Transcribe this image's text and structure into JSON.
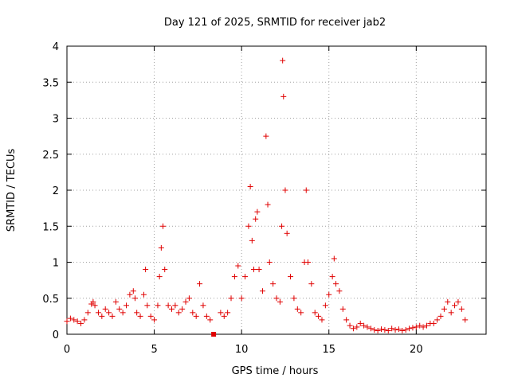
{
  "chart_data": {
    "type": "scatter",
    "title": "Day 121 of 2025, SRMTID for receiver jab2",
    "xlabel": "GPS time / hours",
    "ylabel": "SRMTID / TECUs",
    "xlim": [
      0,
      24
    ],
    "ylim": [
      0,
      4
    ],
    "xticks": [
      0,
      5,
      10,
      15,
      20
    ],
    "yticks": [
      0,
      0.5,
      1,
      1.5,
      2,
      2.5,
      3,
      3.5,
      4
    ],
    "xtick_labels": [
      "0",
      "5",
      "10",
      "15",
      "20"
    ],
    "ytick_labels": [
      "0",
      "0.5",
      "1",
      "1.5",
      "2",
      "2.5",
      "3",
      "3.5",
      "4"
    ],
    "grid": true,
    "marker": "plus",
    "color": "#e00000",
    "series": [
      {
        "name": "SRMTID",
        "x": [
          0.0,
          0.2,
          0.4,
          0.6,
          0.8,
          1.0,
          1.2,
          1.4,
          1.5,
          1.6,
          1.8,
          2.0,
          2.2,
          2.4,
          2.6,
          2.8,
          3.0,
          3.2,
          3.4,
          3.6,
          3.8,
          3.9,
          4.0,
          4.2,
          4.4,
          4.5,
          4.6,
          4.8,
          5.0,
          5.2,
          5.3,
          5.4,
          5.5,
          5.6,
          5.8,
          6.0,
          6.2,
          6.4,
          6.6,
          6.8,
          7.0,
          7.2,
          7.4,
          7.6,
          7.8,
          8.0,
          8.2,
          8.8,
          9.0,
          9.2,
          9.4,
          9.6,
          9.8,
          10.0,
          10.2,
          10.4,
          10.5,
          10.6,
          10.7,
          10.8,
          10.9,
          11.0,
          11.2,
          11.4,
          11.5,
          11.6,
          11.8,
          12.0,
          12.2,
          12.3,
          12.35,
          12.4,
          12.5,
          12.6,
          12.8,
          13.0,
          13.2,
          13.4,
          13.6,
          13.7,
          13.8,
          14.0,
          14.2,
          14.4,
          14.6,
          14.8,
          15.0,
          15.2,
          15.3,
          15.4,
          15.6,
          15.8,
          16.0,
          16.2,
          16.4,
          16.6,
          16.8,
          17.0,
          17.2,
          17.4,
          17.6,
          17.8,
          18.0,
          18.2,
          18.4,
          18.6,
          18.8,
          19.0,
          19.2,
          19.4,
          19.6,
          19.8,
          20.0,
          20.2,
          20.4,
          20.6,
          20.8,
          21.0,
          21.2,
          21.4,
          21.6,
          21.8,
          22.0,
          22.2,
          22.4,
          22.6,
          22.8
        ],
        "y": [
          0.18,
          0.22,
          0.2,
          0.18,
          0.15,
          0.2,
          0.3,
          0.42,
          0.45,
          0.4,
          0.3,
          0.25,
          0.35,
          0.3,
          0.25,
          0.45,
          0.35,
          0.3,
          0.4,
          0.55,
          0.6,
          0.5,
          0.3,
          0.25,
          0.55,
          0.9,
          0.4,
          0.25,
          0.2,
          0.4,
          0.8,
          1.2,
          1.5,
          0.9,
          0.4,
          0.35,
          0.4,
          0.3,
          0.35,
          0.45,
          0.5,
          0.3,
          0.25,
          0.7,
          0.4,
          0.25,
          0.2,
          0.3,
          0.25,
          0.3,
          0.5,
          0.8,
          0.95,
          0.5,
          0.8,
          1.5,
          2.05,
          1.3,
          0.9,
          1.6,
          1.7,
          0.9,
          0.6,
          2.75,
          1.8,
          1.0,
          0.7,
          0.5,
          0.45,
          1.5,
          3.8,
          3.3,
          2.0,
          1.4,
          0.8,
          0.5,
          0.35,
          0.3,
          1.0,
          2.0,
          1.0,
          0.7,
          0.3,
          0.25,
          0.2,
          0.4,
          0.55,
          0.8,
          1.05,
          0.7,
          0.6,
          0.35,
          0.2,
          0.12,
          0.08,
          0.1,
          0.15,
          0.12,
          0.1,
          0.08,
          0.06,
          0.05,
          0.07,
          0.06,
          0.05,
          0.08,
          0.06,
          0.07,
          0.05,
          0.06,
          0.08,
          0.09,
          0.1,
          0.12,
          0.1,
          0.12,
          0.15,
          0.15,
          0.2,
          0.25,
          0.35,
          0.45,
          0.3,
          0.4,
          0.45,
          0.35,
          0.2
        ]
      }
    ],
    "outlier": {
      "x": 8.4,
      "y": 0.0,
      "marker": "square"
    }
  }
}
